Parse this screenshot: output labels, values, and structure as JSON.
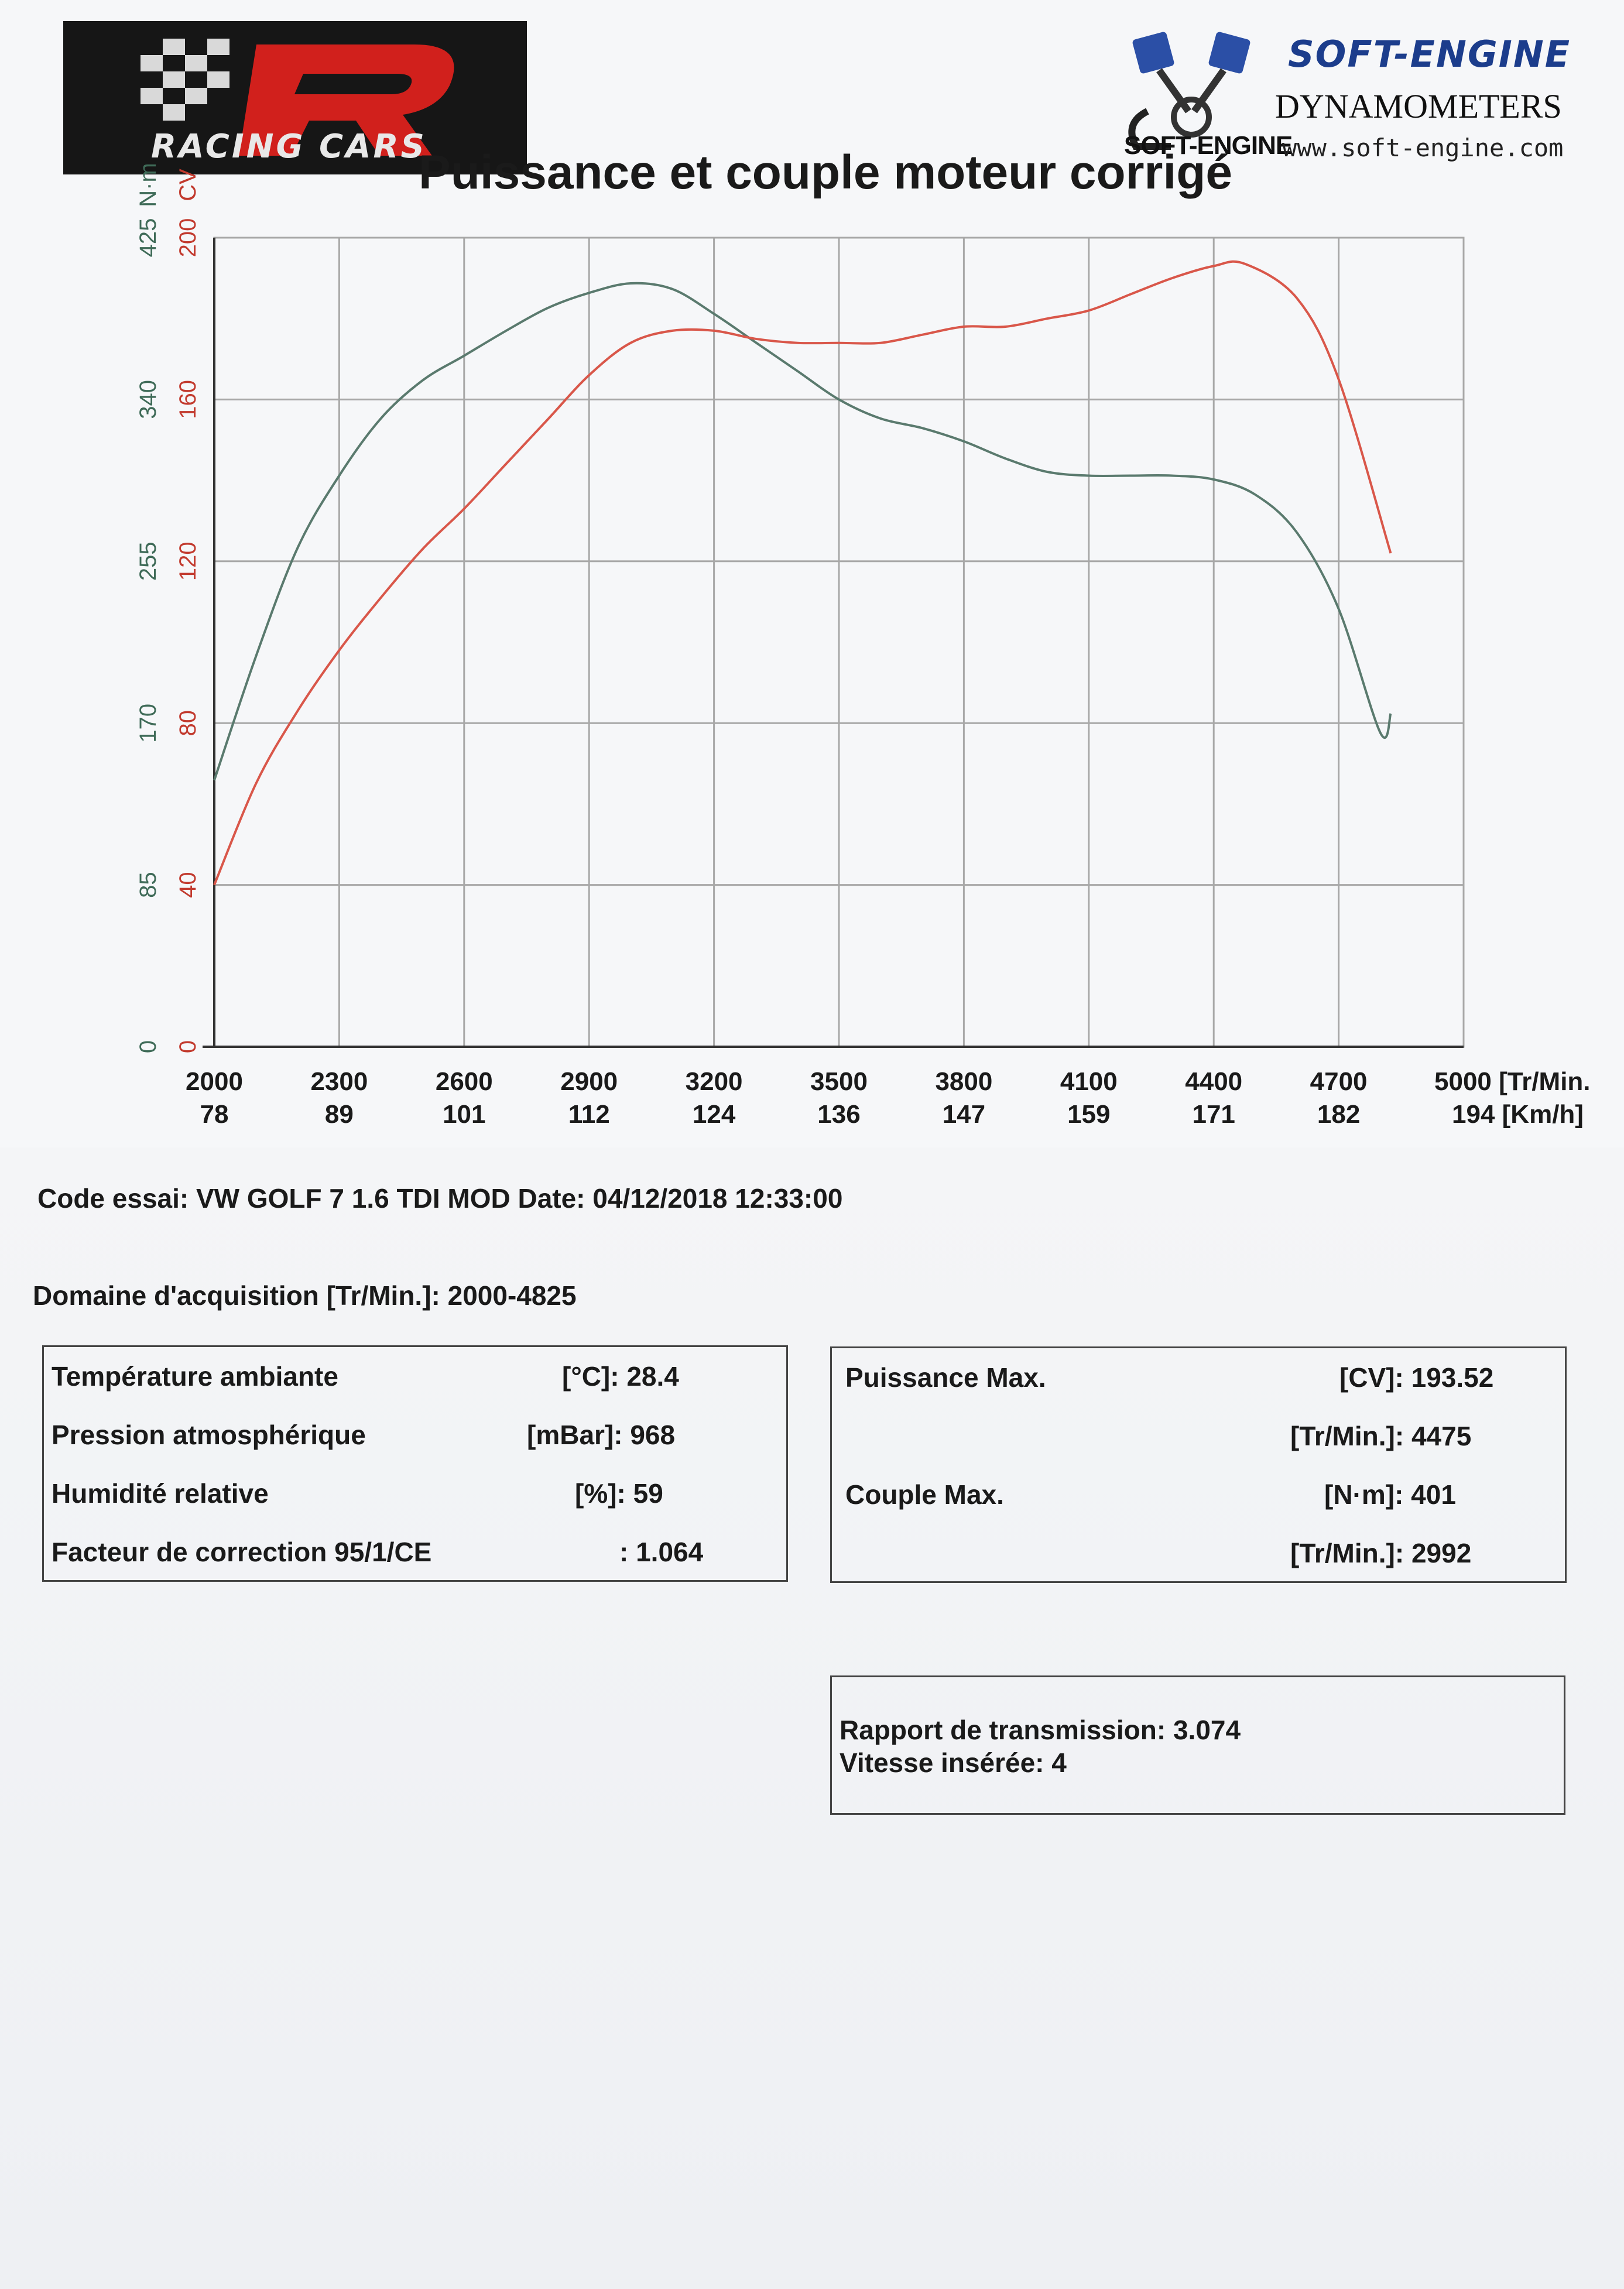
{
  "header": {
    "logo_left_text": "RACING CARS",
    "logo_right": {
      "brand": "SOFT-ENGINE",
      "subtitle": "DYNAMOMETERS",
      "url": "www.soft-engine.com",
      "emblem_text": "SOFT-ENGINE"
    }
  },
  "chart_data": {
    "type": "line",
    "title": "Puissance et couple moteur corrigé",
    "y_left_units": [
      "N·m",
      "CV"
    ],
    "y_torque_ticks": [
      "0",
      "85",
      "170",
      "255",
      "340",
      "425"
    ],
    "y_power_ticks": [
      "0",
      "40",
      "80",
      "120",
      "160",
      "200"
    ],
    "ylim_torque": [
      0,
      425
    ],
    "ylim_power": [
      0,
      200
    ],
    "x_rpm_ticks": [
      "2000",
      "2300",
      "2600",
      "2900",
      "3200",
      "3500",
      "3800",
      "4100",
      "4400",
      "4700",
      "5000 [Tr/Min."
    ],
    "x_speed_ticks": [
      "78",
      "89",
      "101",
      "112",
      "124",
      "136",
      "147",
      "159",
      "171",
      "182",
      "194 [Km/h]"
    ],
    "xlim": [
      2000,
      5000
    ],
    "grid": true,
    "colors": {
      "torque": "#5a7a6e",
      "power": "#d9574a",
      "grid": "#a8a8a8",
      "torque_axis": "#3f6b58",
      "power_axis": "#c23a2e"
    },
    "series": [
      {
        "key": "torque",
        "unit": "N·m",
        "x": [
          2000,
          2100,
          2200,
          2300,
          2400,
          2500,
          2600,
          2700,
          2800,
          2900,
          3000,
          3100,
          3200,
          3300,
          3400,
          3500,
          3600,
          3700,
          3800,
          3900,
          4000,
          4100,
          4200,
          4300,
          4400,
          4500,
          4600,
          4700,
          4800,
          4825
        ],
        "y": [
          140,
          205,
          262,
          300,
          330,
          350,
          363,
          376,
          388,
          396,
          401,
          398,
          385,
          370,
          355,
          340,
          330,
          325,
          318,
          309,
          302,
          300,
          300,
          300,
          298,
          290,
          270,
          230,
          165,
          175
        ]
      },
      {
        "key": "power",
        "unit": "CV",
        "x": [
          2000,
          2100,
          2200,
          2300,
          2400,
          2500,
          2600,
          2700,
          2800,
          2900,
          3000,
          3100,
          3200,
          3300,
          3400,
          3500,
          3600,
          3700,
          3800,
          3900,
          4000,
          4100,
          4200,
          4300,
          4400,
          4475,
          4600,
          4700,
          4825
        ],
        "y": [
          40,
          65,
          83,
          98,
          111,
          123,
          133,
          144,
          155,
          166,
          174,
          177,
          177,
          175,
          174,
          174,
          174,
          176,
          178,
          178,
          180,
          182,
          186,
          190,
          193,
          193.52,
          185,
          165,
          122
        ]
      }
    ]
  },
  "info": {
    "code_essai": "Code essai: VW GOLF 7 1.6 TDI MOD  Date: 04/12/2018 12:33:00",
    "domaine": "Domaine d'acquisition [Tr/Min.]: 2000-4825"
  },
  "conditions": [
    {
      "label": "Température ambiante",
      "value": "[°C]: 28.4"
    },
    {
      "label": "Pression atmosphérique",
      "value": "[mBar]: 968"
    },
    {
      "label": "Humidité relative",
      "value": "[%]: 59"
    },
    {
      "label": "Facteur de correction 95/1/CE",
      "value": ": 1.064"
    }
  ],
  "results": [
    {
      "label": "Puissance Max.",
      "value": "[CV]: 193.52"
    },
    {
      "label": "",
      "value": "[Tr/Min.]: 4475"
    },
    {
      "label": "Couple Max.",
      "value": "[N·m]: 401"
    },
    {
      "label": "",
      "value": "[Tr/Min.]: 2992"
    }
  ],
  "transmission": {
    "ratio": "Rapport de transmission: 3.074",
    "gear": "Vitesse insérée: 4"
  }
}
